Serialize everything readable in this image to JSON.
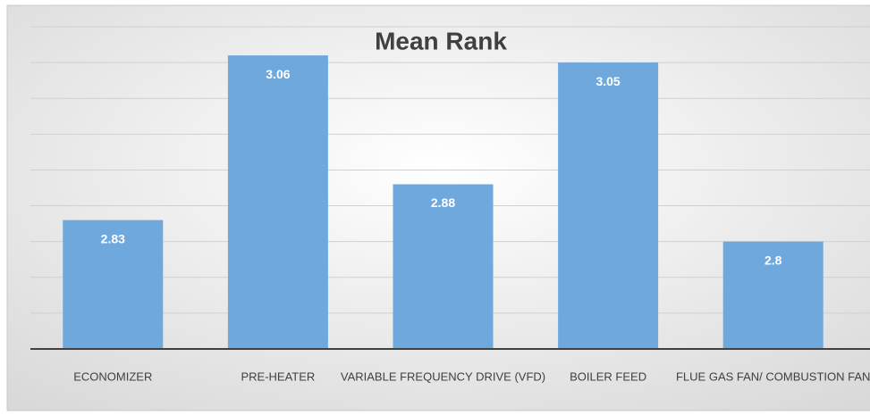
{
  "chart_data": {
    "type": "bar",
    "title": "Mean Rank",
    "categories": [
      "ECONOMIZER",
      "PRE-HEATER",
      "VARIABLE FREQUENCY DRIVE (VFD)",
      "BOILER FEED",
      "FLUE GAS FAN/ COMBUSTION FAN"
    ],
    "values": [
      2.83,
      3.06,
      2.88,
      3.05,
      2.8
    ],
    "color": "#6fa8dc",
    "ylim": [
      2.65,
      3.1
    ],
    "yticks": [
      2.7,
      2.75,
      2.8,
      2.85,
      2.9,
      2.95,
      3.0,
      3.05,
      3.1
    ],
    "grid": true
  }
}
